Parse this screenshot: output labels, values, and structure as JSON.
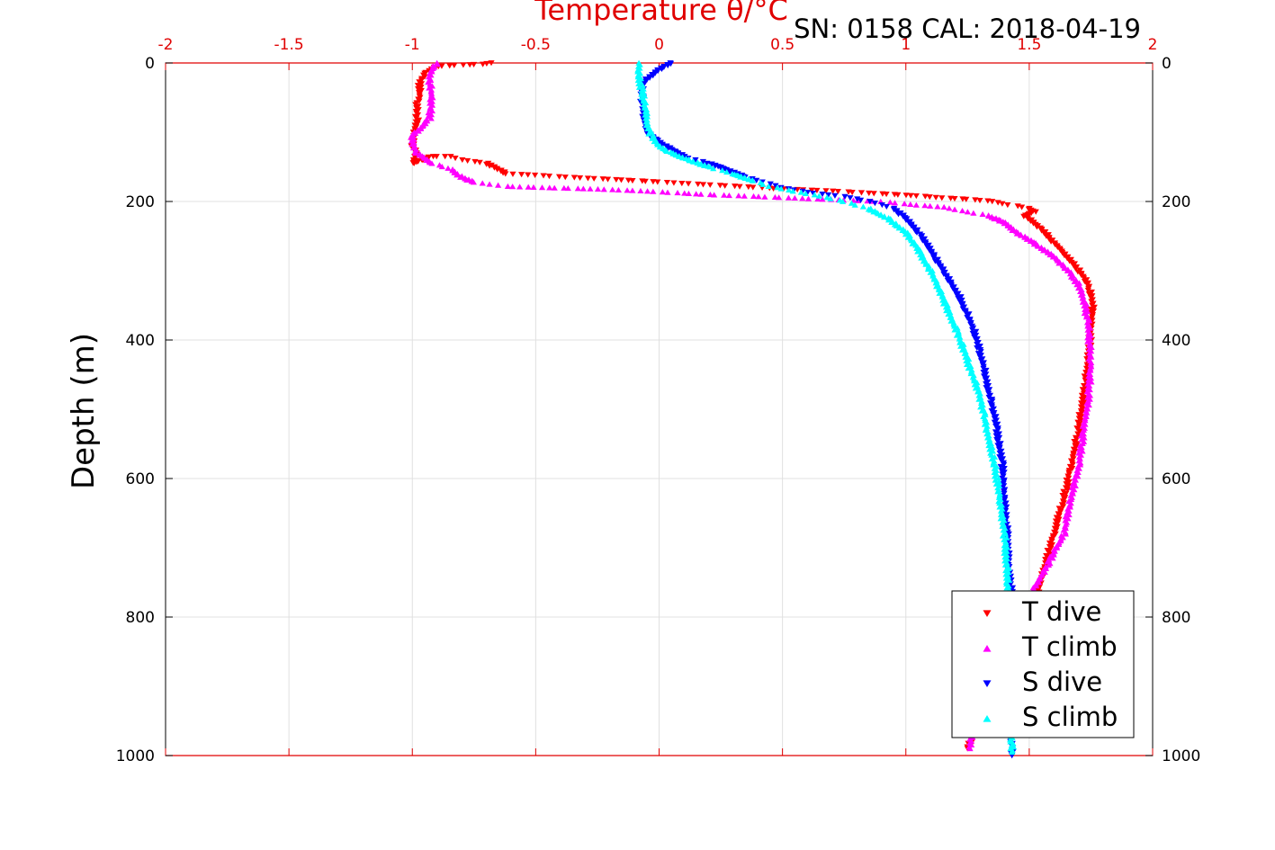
{
  "chart_data": {
    "type": "scatter",
    "title": "Temperature θ/°C",
    "subtitle": "SN: 0158  CAL: 2018-04-19",
    "xlabel": "Temperature θ/°C",
    "ylabel": "Depth (m)",
    "xlim": [
      -2,
      2
    ],
    "ylim": [
      0,
      1000
    ],
    "y_reversed": true,
    "grid": true,
    "x_tick_labels": [
      "-2",
      "-1.5",
      "-1",
      "-0.5",
      "0",
      "0.5",
      "1",
      "1.5",
      "2"
    ],
    "y_tick_labels": [
      "0",
      "200",
      "400",
      "600",
      "800",
      "1000"
    ],
    "legend_position": "bottom-right",
    "colors": {
      "axis": "#e00000",
      "grid": "#e0e0e0",
      "frame": "#000000"
    },
    "series": [
      {
        "name": "T dive",
        "color": "#ff0000",
        "marker": "triangle-down",
        "points": [
          [
            -0.68,
            0
          ],
          [
            -0.72,
            2
          ],
          [
            -0.8,
            3
          ],
          [
            -0.9,
            5
          ],
          [
            -0.95,
            15
          ],
          [
            -0.97,
            30
          ],
          [
            -0.97,
            45
          ],
          [
            -0.98,
            60
          ],
          [
            -0.98,
            80
          ],
          [
            -0.99,
            100
          ],
          [
            -1.0,
            120
          ],
          [
            -0.98,
            130
          ],
          [
            -1.0,
            145
          ],
          [
            -0.92,
            135
          ],
          [
            -0.85,
            135
          ],
          [
            -0.8,
            140
          ],
          [
            -0.7,
            145
          ],
          [
            -0.62,
            160
          ],
          [
            -0.5,
            162
          ],
          [
            -0.38,
            165
          ],
          [
            -0.2,
            168
          ],
          [
            -0.1,
            170
          ],
          [
            0.0,
            172
          ],
          [
            0.15,
            175
          ],
          [
            0.3,
            178
          ],
          [
            0.5,
            182
          ],
          [
            0.7,
            185
          ],
          [
            0.85,
            188
          ],
          [
            0.95,
            190
          ],
          [
            1.05,
            192
          ],
          [
            1.15,
            195
          ],
          [
            1.25,
            197
          ],
          [
            1.35,
            200
          ],
          [
            1.42,
            205
          ],
          [
            1.5,
            210
          ],
          [
            1.52,
            215
          ],
          [
            1.48,
            220
          ],
          [
            1.55,
            240
          ],
          [
            1.6,
            260
          ],
          [
            1.68,
            290
          ],
          [
            1.74,
            320
          ],
          [
            1.76,
            350
          ],
          [
            1.75,
            380
          ],
          [
            1.74,
            430
          ],
          [
            1.72,
            480
          ],
          [
            1.7,
            530
          ],
          [
            1.67,
            580
          ],
          [
            1.64,
            630
          ],
          [
            1.6,
            680
          ],
          [
            1.56,
            730
          ],
          [
            1.52,
            780
          ],
          [
            1.45,
            830
          ],
          [
            1.4,
            870
          ],
          [
            1.35,
            910
          ],
          [
            1.3,
            950
          ],
          [
            1.25,
            990
          ]
        ]
      },
      {
        "name": "T climb",
        "color": "#ff00ff",
        "marker": "triangle-up",
        "points": [
          [
            -0.9,
            0
          ],
          [
            -0.92,
            10
          ],
          [
            -0.93,
            25
          ],
          [
            -0.92,
            50
          ],
          [
            -0.93,
            80
          ],
          [
            -0.97,
            95
          ],
          [
            -1.0,
            105
          ],
          [
            -1.0,
            115
          ],
          [
            -0.98,
            130
          ],
          [
            -0.92,
            145
          ],
          [
            -0.85,
            152
          ],
          [
            -0.8,
            165
          ],
          [
            -0.75,
            172
          ],
          [
            -0.62,
            178
          ],
          [
            -0.45,
            180
          ],
          [
            -0.25,
            182
          ],
          [
            -0.05,
            185
          ],
          [
            0.1,
            188
          ],
          [
            0.2,
            190
          ],
          [
            0.35,
            192
          ],
          [
            0.55,
            195
          ],
          [
            0.75,
            198
          ],
          [
            0.9,
            200
          ],
          [
            1.05,
            205
          ],
          [
            1.15,
            208
          ],
          [
            1.25,
            215
          ],
          [
            1.33,
            220
          ],
          [
            1.4,
            230
          ],
          [
            1.45,
            245
          ],
          [
            1.52,
            260
          ],
          [
            1.6,
            280
          ],
          [
            1.66,
            300
          ],
          [
            1.7,
            320
          ],
          [
            1.72,
            340
          ],
          [
            1.74,
            380
          ],
          [
            1.75,
            430
          ],
          [
            1.74,
            480
          ],
          [
            1.72,
            530
          ],
          [
            1.7,
            580
          ],
          [
            1.67,
            630
          ],
          [
            1.64,
            680
          ],
          [
            1.58,
            720
          ],
          [
            1.52,
            760
          ],
          [
            1.46,
            800
          ],
          [
            1.4,
            840
          ],
          [
            1.35,
            880
          ],
          [
            1.3,
            920
          ],
          [
            1.27,
            960
          ],
          [
            1.26,
            990
          ]
        ]
      },
      {
        "name": "S dive",
        "color": "#0000ff",
        "marker": "triangle-down",
        "points": [
          [
            0.05,
            0
          ],
          [
            0.0,
            10
          ],
          [
            -0.07,
            30
          ],
          [
            -0.07,
            50
          ],
          [
            -0.06,
            80
          ],
          [
            -0.05,
            100
          ],
          [
            0.0,
            115
          ],
          [
            0.05,
            125
          ],
          [
            0.1,
            135
          ],
          [
            0.15,
            140
          ],
          [
            0.2,
            145
          ],
          [
            0.28,
            155
          ],
          [
            0.35,
            165
          ],
          [
            0.42,
            172
          ],
          [
            0.5,
            180
          ],
          [
            0.6,
            187
          ],
          [
            0.75,
            193
          ],
          [
            0.85,
            200
          ],
          [
            0.95,
            210
          ],
          [
            1.0,
            225
          ],
          [
            1.05,
            245
          ],
          [
            1.1,
            270
          ],
          [
            1.15,
            300
          ],
          [
            1.22,
            340
          ],
          [
            1.27,
            380
          ],
          [
            1.31,
            430
          ],
          [
            1.34,
            480
          ],
          [
            1.37,
            530
          ],
          [
            1.39,
            580
          ],
          [
            1.4,
            630
          ],
          [
            1.41,
            680
          ],
          [
            1.42,
            730
          ],
          [
            1.43,
            780
          ],
          [
            1.43,
            830
          ],
          [
            1.43,
            880
          ],
          [
            1.43,
            930
          ],
          [
            1.43,
            980
          ],
          [
            1.43,
            1000
          ]
        ]
      },
      {
        "name": "S climb",
        "color": "#00ffff",
        "marker": "triangle-up",
        "points": [
          [
            -0.08,
            0
          ],
          [
            -0.08,
            20
          ],
          [
            -0.07,
            40
          ],
          [
            -0.06,
            60
          ],
          [
            -0.05,
            80
          ],
          [
            -0.04,
            100
          ],
          [
            0.0,
            120
          ],
          [
            0.05,
            130
          ],
          [
            0.12,
            140
          ],
          [
            0.2,
            150
          ],
          [
            0.3,
            160
          ],
          [
            0.38,
            170
          ],
          [
            0.45,
            178
          ],
          [
            0.55,
            185
          ],
          [
            0.65,
            192
          ],
          [
            0.75,
            200
          ],
          [
            0.85,
            210
          ],
          [
            0.93,
            225
          ],
          [
            1.0,
            245
          ],
          [
            1.05,
            270
          ],
          [
            1.1,
            300
          ],
          [
            1.15,
            340
          ],
          [
            1.2,
            380
          ],
          [
            1.25,
            430
          ],
          [
            1.3,
            480
          ],
          [
            1.33,
            530
          ],
          [
            1.36,
            580
          ],
          [
            1.38,
            630
          ],
          [
            1.4,
            680
          ],
          [
            1.41,
            730
          ],
          [
            1.42,
            780
          ],
          [
            1.42,
            830
          ],
          [
            1.42,
            880
          ],
          [
            1.42,
            930
          ],
          [
            1.43,
            980
          ],
          [
            1.43,
            995
          ]
        ]
      }
    ]
  }
}
